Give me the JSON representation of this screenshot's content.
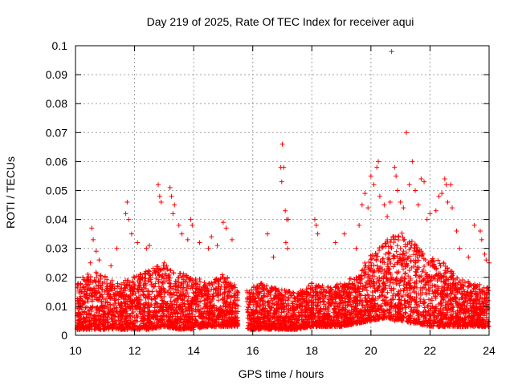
{
  "chart_data": {
    "type": "scatter",
    "title": "Day 219 of 2025, Rate Of TEC Index for receiver aqui",
    "xlabel": "GPS time / hours",
    "ylabel": "ROTI / TECUs",
    "xlim": [
      10,
      24
    ],
    "ylim": [
      0,
      0.1
    ],
    "x_ticks": [
      "10",
      "12",
      "14",
      "16",
      "18",
      "20",
      "22",
      "24"
    ],
    "y_ticks": [
      "0",
      "0.01",
      "0.02",
      "0.03",
      "0.04",
      "0.05",
      "0.06",
      "0.07",
      "0.08",
      "0.09",
      "0.1"
    ],
    "grid": true,
    "marker": "+",
    "color": "#ff0000",
    "data_gap": [
      15.5,
      15.8
    ],
    "series": [
      {
        "points": [
          [
            10.55,
            0.037
          ],
          [
            10.6,
            0.033
          ],
          [
            10.7,
            0.029
          ],
          [
            10.8,
            0.026
          ],
          [
            11.2,
            0.024
          ],
          [
            11.4,
            0.03
          ],
          [
            11.75,
            0.046
          ],
          [
            11.7,
            0.042
          ],
          [
            11.8,
            0.04
          ],
          [
            11.9,
            0.035
          ],
          [
            12.1,
            0.032
          ],
          [
            12.4,
            0.03
          ],
          [
            12.5,
            0.031
          ],
          [
            12.8,
            0.052
          ],
          [
            12.85,
            0.048
          ],
          [
            12.9,
            0.046
          ],
          [
            13.2,
            0.051
          ],
          [
            13.25,
            0.048
          ],
          [
            13.3,
            0.042
          ],
          [
            13.35,
            0.045
          ],
          [
            13.5,
            0.038
          ],
          [
            13.6,
            0.035
          ],
          [
            13.8,
            0.033
          ],
          [
            13.9,
            0.04
          ],
          [
            13.95,
            0.038
          ],
          [
            14.2,
            0.032
          ],
          [
            14.5,
            0.03
          ],
          [
            14.6,
            0.034
          ],
          [
            14.8,
            0.031
          ],
          [
            15.0,
            0.039
          ],
          [
            15.1,
            0.037
          ],
          [
            15.3,
            0.033
          ],
          [
            16.5,
            0.035
          ],
          [
            16.7,
            0.027
          ],
          [
            17.0,
            0.066
          ],
          [
            16.95,
            0.058
          ],
          [
            17.05,
            0.058
          ],
          [
            16.98,
            0.053
          ],
          [
            17.1,
            0.043
          ],
          [
            17.15,
            0.04
          ],
          [
            17.2,
            0.04
          ],
          [
            17.12,
            0.032
          ],
          [
            17.18,
            0.03
          ],
          [
            18.1,
            0.04
          ],
          [
            18.15,
            0.038
          ],
          [
            18.2,
            0.035
          ],
          [
            18.8,
            0.032
          ],
          [
            19.1,
            0.035
          ],
          [
            19.5,
            0.03
          ],
          [
            19.6,
            0.038
          ],
          [
            19.7,
            0.045
          ],
          [
            19.8,
            0.049
          ],
          [
            19.9,
            0.044
          ],
          [
            20.0,
            0.055
          ],
          [
            20.1,
            0.052
          ],
          [
            20.2,
            0.058
          ],
          [
            20.25,
            0.06
          ],
          [
            20.3,
            0.048
          ],
          [
            20.45,
            0.045
          ],
          [
            20.55,
            0.041
          ],
          [
            20.65,
            0.046
          ],
          [
            20.7,
            0.098
          ],
          [
            20.8,
            0.058
          ],
          [
            20.85,
            0.055
          ],
          [
            20.9,
            0.05
          ],
          [
            21.0,
            0.046
          ],
          [
            21.1,
            0.044
          ],
          [
            21.2,
            0.07
          ],
          [
            21.3,
            0.052
          ],
          [
            21.4,
            0.06
          ],
          [
            21.5,
            0.05
          ],
          [
            21.6,
            0.045
          ],
          [
            21.7,
            0.054
          ],
          [
            21.8,
            0.053
          ],
          [
            21.9,
            0.04
          ],
          [
            22.0,
            0.042
          ],
          [
            22.2,
            0.043
          ],
          [
            22.3,
            0.048
          ],
          [
            22.4,
            0.049
          ],
          [
            22.5,
            0.054
          ],
          [
            22.55,
            0.052
          ],
          [
            22.6,
            0.046
          ],
          [
            22.7,
            0.052
          ],
          [
            22.75,
            0.044
          ],
          [
            22.9,
            0.036
          ],
          [
            23.0,
            0.03
          ],
          [
            23.3,
            0.027
          ],
          [
            23.5,
            0.038
          ],
          [
            23.7,
            0.036
          ],
          [
            23.75,
            0.033
          ],
          [
            23.85,
            0.028
          ],
          [
            23.9,
            0.026
          ],
          [
            24.0,
            0.025
          ],
          [
            10.1,
            0.005
          ],
          [
            10.15,
            0.01
          ],
          [
            10.2,
            0.015
          ],
          [
            10.25,
            0.02
          ],
          [
            10.3,
            0.008
          ],
          [
            10.5,
            0.025
          ],
          [
            11.0,
            0.02
          ],
          [
            11.5,
            0.015
          ],
          [
            12.0,
            0.012
          ],
          [
            12.5,
            0.022
          ],
          [
            13.0,
            0.025
          ],
          [
            13.5,
            0.02
          ],
          [
            14.0,
            0.018
          ],
          [
            14.5,
            0.015
          ],
          [
            15.0,
            0.02
          ],
          [
            15.4,
            0.01
          ],
          [
            16.0,
            0.012
          ],
          [
            16.3,
            0.018
          ],
          [
            17.5,
            0.01
          ],
          [
            18.0,
            0.018
          ],
          [
            18.5,
            0.015
          ],
          [
            19.0,
            0.012
          ],
          [
            19.5,
            0.02
          ],
          [
            20.0,
            0.025
          ],
          [
            20.5,
            0.028
          ],
          [
            21.0,
            0.03
          ],
          [
            21.5,
            0.025
          ],
          [
            22.0,
            0.02
          ],
          [
            22.5,
            0.018
          ],
          [
            23.0,
            0.015
          ],
          [
            23.5,
            0.012
          ],
          [
            23.9,
            0.01
          ],
          [
            20.8,
            0.005
          ],
          [
            12.0,
            0.003
          ],
          [
            16.5,
            0.003
          ]
        ]
      }
    ],
    "dense_band": [
      [
        10.05,
        0.002,
        0.016
      ],
      [
        10.5,
        0.002,
        0.02
      ],
      [
        11.0,
        0.002,
        0.018
      ],
      [
        11.5,
        0.002,
        0.016
      ],
      [
        12.0,
        0.002,
        0.018
      ],
      [
        12.5,
        0.002,
        0.02
      ],
      [
        13.0,
        0.003,
        0.022
      ],
      [
        13.5,
        0.002,
        0.019
      ],
      [
        14.0,
        0.002,
        0.018
      ],
      [
        14.5,
        0.003,
        0.016
      ],
      [
        15.0,
        0.003,
        0.019
      ],
      [
        15.45,
        0.003,
        0.015
      ],
      [
        15.85,
        0.002,
        0.014
      ],
      [
        16.2,
        0.002,
        0.016
      ],
      [
        16.6,
        0.002,
        0.015
      ],
      [
        17.0,
        0.002,
        0.014
      ],
      [
        17.5,
        0.002,
        0.013
      ],
      [
        18.0,
        0.003,
        0.016
      ],
      [
        18.5,
        0.003,
        0.015
      ],
      [
        19.0,
        0.003,
        0.016
      ],
      [
        19.5,
        0.004,
        0.019
      ],
      [
        20.0,
        0.005,
        0.025
      ],
      [
        20.5,
        0.006,
        0.03
      ],
      [
        21.0,
        0.005,
        0.032
      ],
      [
        21.5,
        0.004,
        0.028
      ],
      [
        22.0,
        0.003,
        0.024
      ],
      [
        22.5,
        0.003,
        0.022
      ],
      [
        23.0,
        0.003,
        0.018
      ],
      [
        23.5,
        0.003,
        0.016
      ],
      [
        23.98,
        0.003,
        0.015
      ]
    ]
  }
}
